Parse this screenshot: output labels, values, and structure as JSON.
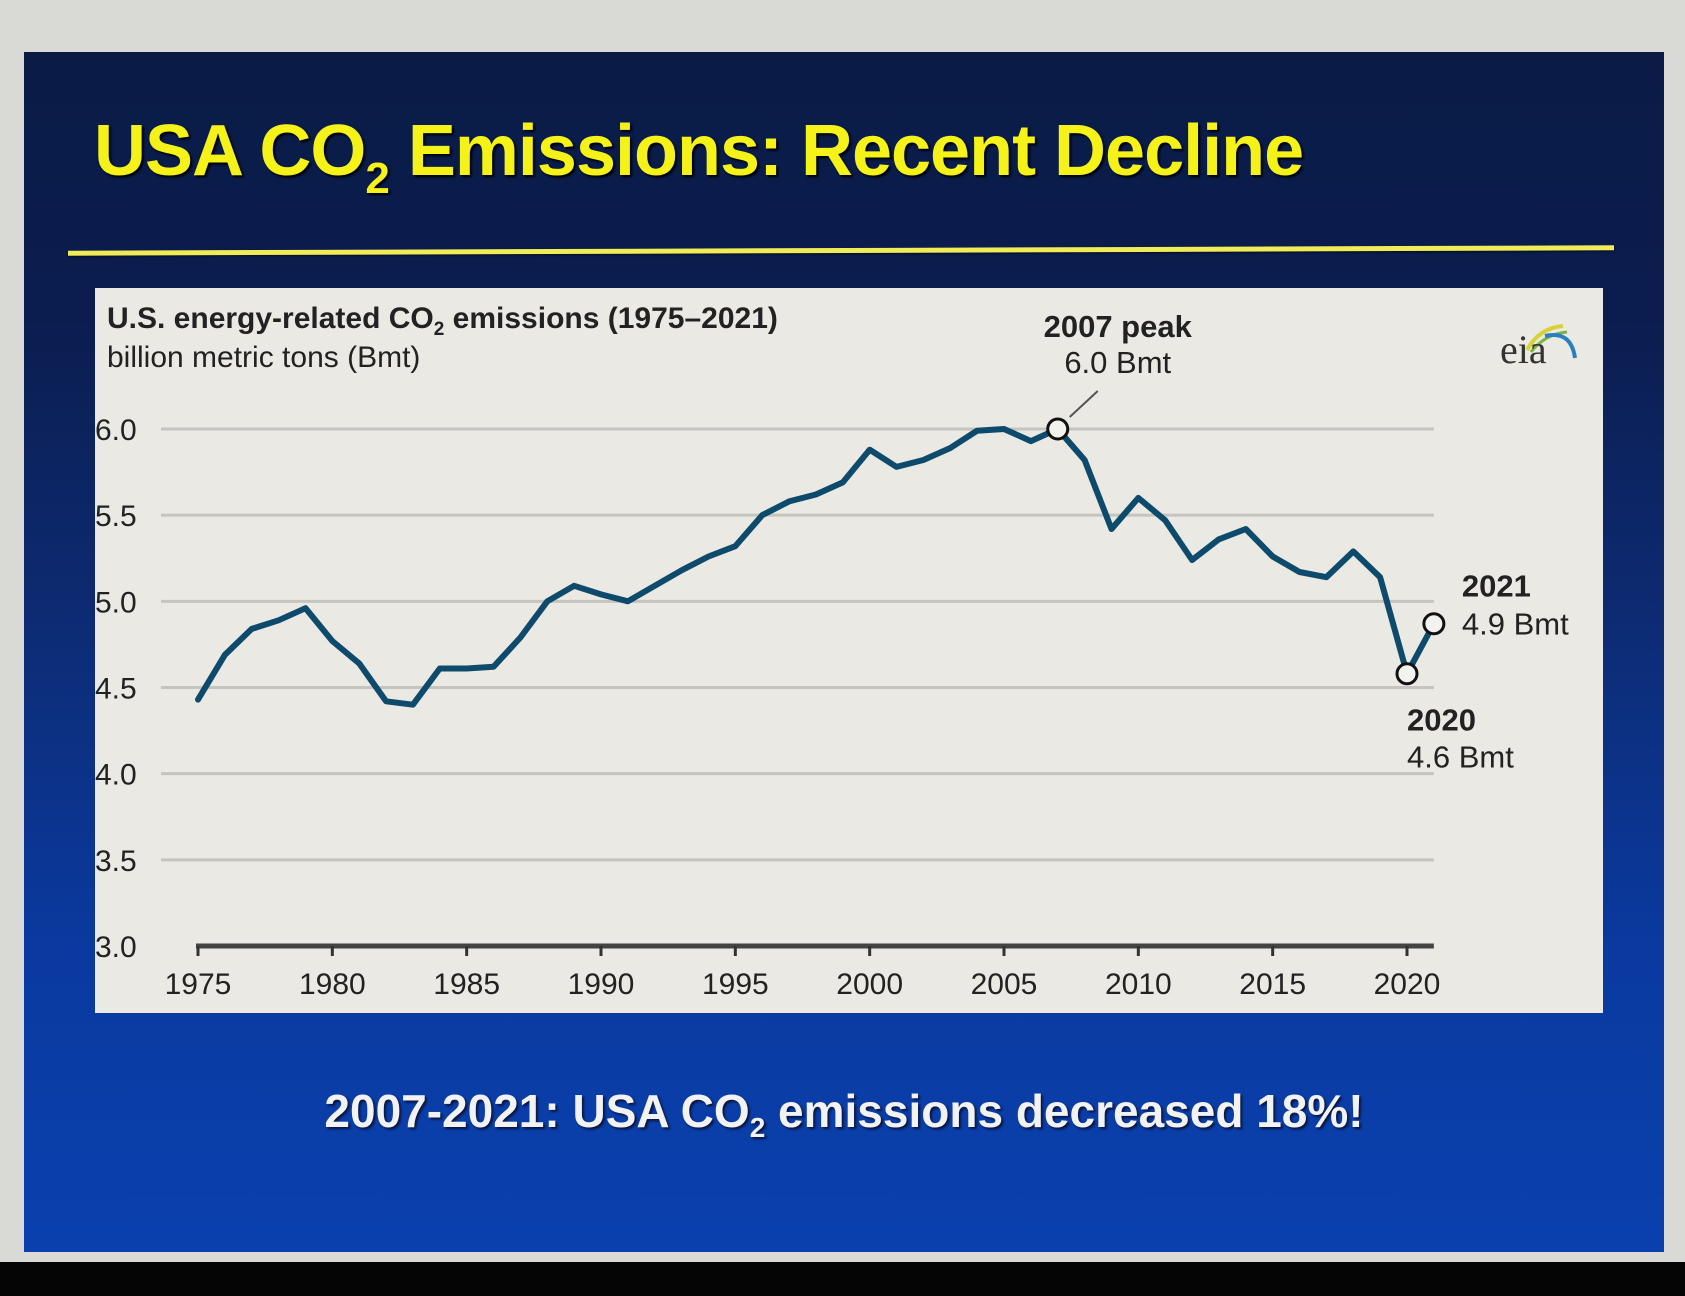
{
  "slide": {
    "title_prefix": "USA CO",
    "title_sub": "2",
    "title_suffix": " Emissions: Recent Decline",
    "caption_prefix": "2007-2021: USA CO",
    "caption_sub": "2",
    "caption_suffix": " emissions decreased 18%!",
    "colors": {
      "title": "#f5f21a",
      "rule": "#f0ec58",
      "caption": "#f2f2f2",
      "line": "#0e4a6b"
    }
  },
  "logo": {
    "text": "eia",
    "icon": "eia-logo-icon"
  },
  "chart_data": {
    "type": "line",
    "title_prefix": "U.S. energy-related CO",
    "title_sub": "2",
    "title_suffix": " emissions (1975–2021)",
    "subtitle": "billion metric tons (Bmt)",
    "xlabel": "",
    "ylabel": "billion metric tons (Bmt)",
    "xlim": [
      1975,
      2021
    ],
    "ylim": [
      3.0,
      6.0
    ],
    "grid": true,
    "legend": "none",
    "x_ticks": [
      1975,
      1980,
      1985,
      1990,
      1995,
      2000,
      2005,
      2010,
      2015,
      2020
    ],
    "x_tick_labels": [
      "1975",
      "1980",
      "1985",
      "1990",
      "1995",
      "2000",
      "2005",
      "2010",
      "2015",
      "2020"
    ],
    "y_ticks": [
      3.0,
      3.5,
      4.0,
      4.5,
      5.0,
      5.5,
      6.0
    ],
    "y_tick_labels": [
      "3.0",
      "3.5",
      "4.0",
      "4.5",
      "5.0",
      "5.5",
      "6.0"
    ],
    "series": [
      {
        "name": "U.S. energy-related CO2 emissions",
        "x": [
          1975,
          1976,
          1977,
          1978,
          1979,
          1980,
          1981,
          1982,
          1983,
          1984,
          1985,
          1986,
          1987,
          1988,
          1989,
          1990,
          1991,
          1992,
          1993,
          1994,
          1995,
          1996,
          1997,
          1998,
          1999,
          2000,
          2001,
          2002,
          2003,
          2004,
          2005,
          2006,
          2007,
          2008,
          2009,
          2010,
          2011,
          2012,
          2013,
          2014,
          2015,
          2016,
          2017,
          2018,
          2019,
          2020,
          2021
        ],
        "values": [
          4.43,
          4.69,
          4.84,
          4.89,
          4.96,
          4.77,
          4.64,
          4.42,
          4.4,
          4.61,
          4.61,
          4.62,
          4.79,
          5.0,
          5.09,
          5.04,
          5.0,
          5.09,
          5.18,
          5.26,
          5.32,
          5.5,
          5.58,
          5.62,
          5.69,
          5.88,
          5.78,
          5.82,
          5.89,
          5.99,
          6.0,
          5.93,
          6.0,
          5.82,
          5.42,
          5.6,
          5.47,
          5.24,
          5.36,
          5.42,
          5.26,
          5.17,
          5.14,
          5.29,
          5.14,
          4.58,
          4.87
        ]
      }
    ],
    "annotations": [
      {
        "year": 2007,
        "value": 6.0,
        "line1": "2007 peak",
        "line2": "6.0 Bmt",
        "placement": "above"
      },
      {
        "year": 2021,
        "value": 4.9,
        "line1": "2021",
        "line2": "4.9 Bmt",
        "placement": "right"
      },
      {
        "year": 2020,
        "value": 4.6,
        "line1": "2020",
        "line2": "4.6 Bmt",
        "placement": "below"
      }
    ]
  }
}
